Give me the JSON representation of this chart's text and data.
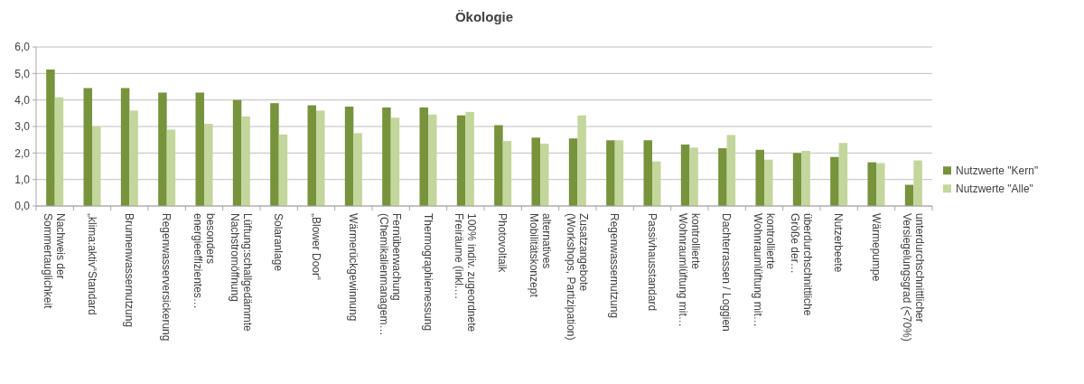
{
  "chart_data": {
    "type": "bar",
    "title": "Ökologie",
    "categories": [
      "Nachweis der\nSommertauglichkeit",
      "„klima:aktiv“Standard",
      "Brunnenwassernutzung",
      "Regenwasserversickerung",
      "besonders\nenergieeffizientes…",
      "Lüftung:schallgedämmte\nNachstromöffnung",
      "Solaranlage",
      "„Blower Door“",
      "Wärmerückgewinnung",
      "Fernüberwachung\n(Chemikalienmanagem…",
      "Thermographiemessung",
      "100% indiv. zugeordnete\nFreiräume (inkl.…",
      "Photovoltaik",
      "alternatives\nMobilitätskonzept",
      "Zusatzangebote\n(Workshops, Partizipation)",
      "Regenwassernutzung",
      "Passivhausstandard",
      "kontrollierte\nWohnraumlüftung mit…",
      "Dachterrassen / Loggien",
      "kontrollierte\nWohnraumlüftung mit…",
      "überdurchschnittliche\nGröße der…",
      "Nutzerbeete",
      "Wärmepumpe",
      "unterdurchschnittlicher\nVersiegelungsgrad (<70%)"
    ],
    "series": [
      {
        "name": "Nutzwerte \"Kern\"",
        "color": "#77933c",
        "values": [
          5.15,
          4.45,
          4.45,
          4.28,
          4.28,
          4.0,
          3.88,
          3.8,
          3.75,
          3.72,
          3.72,
          3.42,
          3.05,
          2.58,
          2.55,
          2.48,
          2.48,
          2.32,
          2.18,
          2.12,
          2.0,
          1.85,
          1.65,
          0.8
        ]
      },
      {
        "name": "Nutzwerte \"Alle\"",
        "color": "#c3d69b",
        "values": [
          4.1,
          3.0,
          3.6,
          2.88,
          3.1,
          3.38,
          2.7,
          3.6,
          2.75,
          3.33,
          3.45,
          3.55,
          2.45,
          2.35,
          3.42,
          2.48,
          1.68,
          2.2,
          2.68,
          1.75,
          2.08,
          2.38,
          1.62,
          1.72
        ]
      }
    ],
    "ylim": [
      0,
      6
    ],
    "yticks": [
      {
        "value": 0,
        "label": "0,0"
      },
      {
        "value": 1,
        "label": "1,0"
      },
      {
        "value": 2,
        "label": "2,0"
      },
      {
        "value": 3,
        "label": "3,0"
      },
      {
        "value": 4,
        "label": "4,0"
      },
      {
        "value": 5,
        "label": "5,0"
      },
      {
        "value": 6,
        "label": "6,0"
      }
    ],
    "grid": "y",
    "legend": "right"
  }
}
